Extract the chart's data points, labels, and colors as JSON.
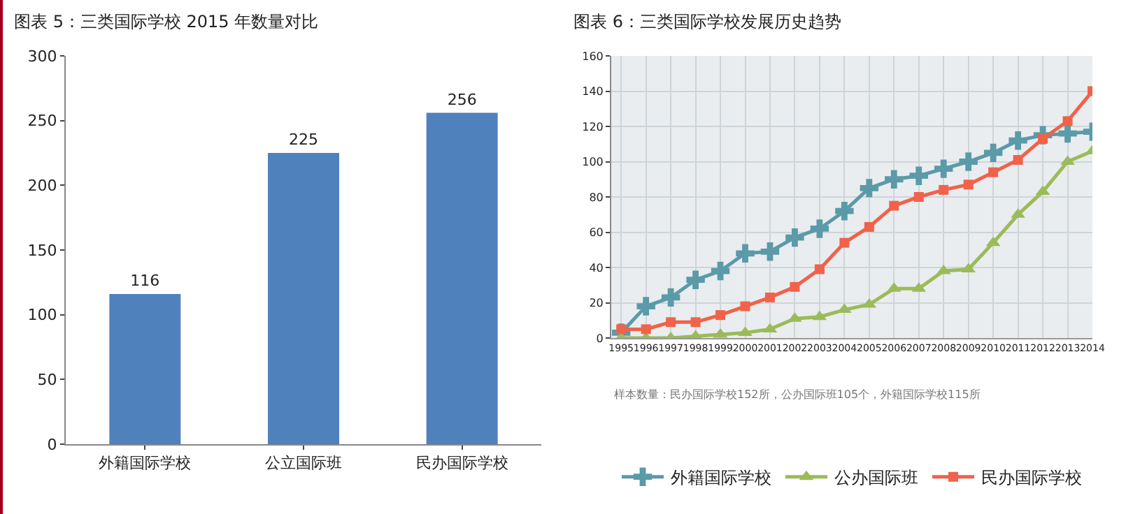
{
  "chart_data": [
    {
      "type": "bar",
      "title": "图表 5：三类国际学校 2015 年数量对比",
      "categories": [
        "外籍国际学校",
        "公立国际班",
        "民办国际学校"
      ],
      "values": [
        116,
        225,
        256
      ],
      "color": "#4f81bd",
      "ylim": [
        0,
        300
      ],
      "yticks": [
        0,
        50,
        100,
        150,
        200,
        250,
        300
      ],
      "grid": false,
      "data_labels": true
    },
    {
      "type": "line",
      "title": "图表 6：三类国际学校发展历史趋势",
      "x": [
        1995,
        1996,
        1997,
        1998,
        1999,
        2000,
        2001,
        2002,
        2003,
        2004,
        2005,
        2006,
        2007,
        2008,
        2009,
        2010,
        2011,
        2012,
        2013,
        2014
      ],
      "series": [
        {
          "name": "外籍国际学校",
          "color": "#5b9aa8",
          "marker": "cross",
          "values": [
            3,
            18,
            23,
            33,
            38,
            48,
            49,
            57,
            62,
            72,
            85,
            90,
            92,
            96,
            100,
            105,
            112,
            115,
            116,
            117
          ]
        },
        {
          "name": "公办国际班",
          "color": "#9bbb59",
          "marker": "triangle",
          "values": [
            0,
            0,
            0,
            1,
            2,
            3,
            5,
            11,
            12,
            16,
            19,
            28,
            28,
            38,
            39,
            54,
            70,
            83,
            100,
            106
          ]
        },
        {
          "name": "民办国际学校",
          "color": "#f0624a",
          "marker": "square",
          "values": [
            5,
            5,
            9,
            9,
            13,
            18,
            23,
            29,
            39,
            54,
            63,
            75,
            80,
            84,
            87,
            94,
            101,
            113,
            123,
            140
          ]
        }
      ],
      "xlim": [
        1994.6,
        2014
      ],
      "xticks": [
        1995,
        1996,
        1997,
        1998,
        1999,
        2000,
        2001,
        2002,
        2003,
        2004,
        2005,
        2006,
        2007,
        2008,
        2009,
        2010,
        2011,
        2012,
        2013,
        2014
      ],
      "ylim": [
        0,
        160
      ],
      "yticks": [
        0,
        20,
        40,
        60,
        80,
        100,
        120,
        140,
        160
      ],
      "grid": true,
      "legend": "bottom",
      "line_style": "solid",
      "annotations": [
        "样本数量：民办国际学校152所，公办国际班105个，外籍国际学校115所"
      ]
    }
  ]
}
